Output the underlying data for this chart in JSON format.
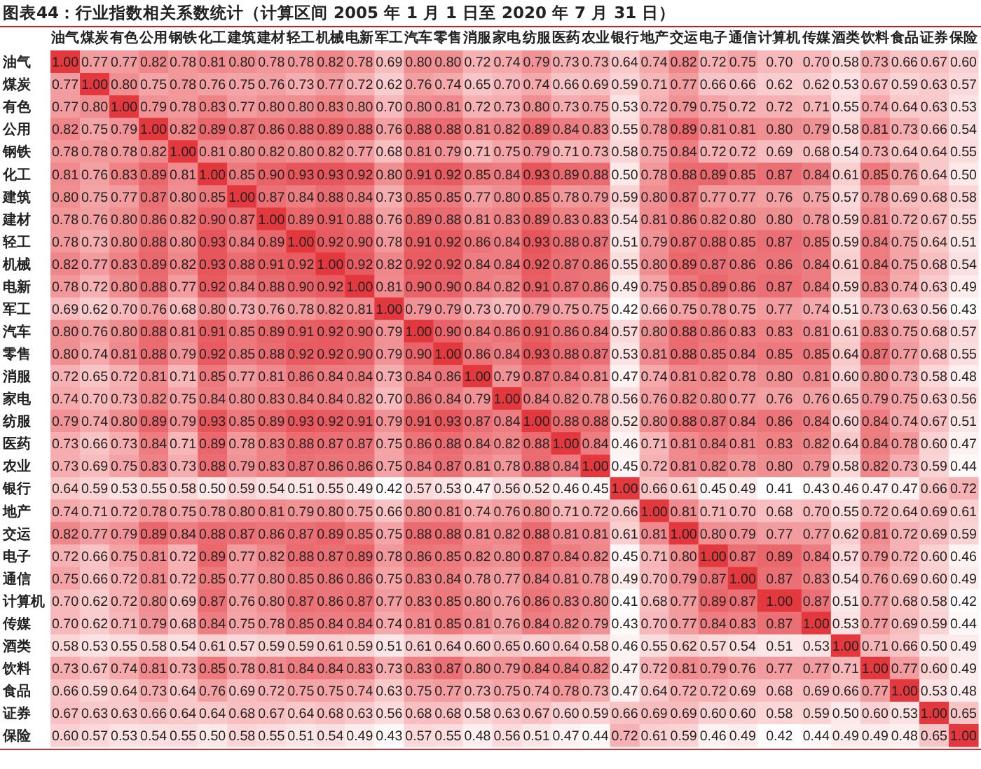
{
  "chart_data": {
    "type": "heatmap",
    "title": "图表44：行业指数相关系数统计（计算区间 2005 年 1 月 1 日至 2020 年 7 月 31 日）",
    "categories": [
      "油气",
      "煤炭",
      "有色",
      "公用",
      "钢铁",
      "化工",
      "建筑",
      "建材",
      "轻工",
      "机械",
      "电新",
      "军工",
      "汽车",
      "零售",
      "消服",
      "家电",
      "纺服",
      "医药",
      "农业",
      "银行",
      "地产",
      "交运",
      "电子",
      "通信",
      "计算机",
      "传媒",
      "酒类",
      "饮料",
      "食品",
      "证券",
      "保险"
    ],
    "y_categories": [
      "油气",
      "煤炭",
      "有色",
      "公用",
      "钢铁",
      "化工",
      "建筑",
      "建材",
      "轻工",
      "机械",
      "电新",
      "军工",
      "汽车",
      "零售",
      "消服",
      "家电",
      "纺服",
      "医药",
      "农业",
      "银行",
      "地产",
      "交运",
      "电子",
      "通信",
      "计算机",
      "传媒",
      "酒类",
      "饮料",
      "食品",
      "证券",
      "保险"
    ],
    "cells": [
      [
        1.0,
        0.77,
        0.77,
        0.82,
        0.78,
        0.81,
        0.8,
        0.78,
        0.78,
        0.82,
        0.78,
        0.69,
        0.8,
        0.8,
        0.72,
        0.74,
        0.79,
        0.73,
        0.73,
        0.64,
        0.74,
        0.82,
        0.72,
        0.75,
        0.7,
        0.7,
        0.58,
        0.73,
        0.66,
        0.67,
        0.6
      ],
      [
        0.77,
        1.0,
        0.8,
        0.75,
        0.78,
        0.76,
        0.75,
        0.76,
        0.73,
        0.77,
        0.72,
        0.62,
        0.76,
        0.74,
        0.65,
        0.7,
        0.74,
        0.66,
        0.69,
        0.59,
        0.71,
        0.77,
        0.66,
        0.66,
        0.62,
        0.62,
        0.53,
        0.67,
        0.59,
        0.63,
        0.57
      ],
      [
        0.77,
        0.8,
        1.0,
        0.79,
        0.78,
        0.83,
        0.77,
        0.8,
        0.8,
        0.83,
        0.8,
        0.7,
        0.8,
        0.81,
        0.72,
        0.73,
        0.8,
        0.73,
        0.75,
        0.53,
        0.72,
        0.79,
        0.75,
        0.72,
        0.72,
        0.71,
        0.55,
        0.74,
        0.64,
        0.63,
        0.53
      ],
      [
        0.82,
        0.75,
        0.79,
        1.0,
        0.82,
        0.89,
        0.87,
        0.86,
        0.88,
        0.89,
        0.88,
        0.76,
        0.88,
        0.88,
        0.81,
        0.82,
        0.89,
        0.84,
        0.83,
        0.55,
        0.78,
        0.89,
        0.81,
        0.81,
        0.8,
        0.79,
        0.58,
        0.81,
        0.73,
        0.66,
        0.54
      ],
      [
        0.78,
        0.78,
        0.78,
        0.82,
        1.0,
        0.81,
        0.8,
        0.82,
        0.8,
        0.82,
        0.77,
        0.68,
        0.81,
        0.79,
        0.71,
        0.75,
        0.79,
        0.71,
        0.73,
        0.58,
        0.75,
        0.84,
        0.72,
        0.72,
        0.69,
        0.68,
        0.54,
        0.73,
        0.64,
        0.64,
        0.55
      ],
      [
        0.81,
        0.76,
        0.83,
        0.89,
        0.81,
        1.0,
        0.85,
        0.9,
        0.93,
        0.93,
        0.92,
        0.8,
        0.91,
        0.92,
        0.85,
        0.84,
        0.93,
        0.89,
        0.88,
        0.5,
        0.78,
        0.88,
        0.89,
        0.85,
        0.87,
        0.84,
        0.61,
        0.85,
        0.76,
        0.64,
        0.5
      ],
      [
        0.8,
        0.75,
        0.77,
        0.87,
        0.8,
        0.85,
        1.0,
        0.87,
        0.84,
        0.88,
        0.84,
        0.73,
        0.85,
        0.85,
        0.77,
        0.8,
        0.85,
        0.78,
        0.79,
        0.59,
        0.8,
        0.87,
        0.77,
        0.77,
        0.76,
        0.75,
        0.57,
        0.78,
        0.69,
        0.68,
        0.58
      ],
      [
        0.78,
        0.76,
        0.8,
        0.86,
        0.82,
        0.9,
        0.87,
        1.0,
        0.89,
        0.91,
        0.88,
        0.76,
        0.89,
        0.88,
        0.81,
        0.83,
        0.89,
        0.83,
        0.83,
        0.54,
        0.81,
        0.86,
        0.82,
        0.8,
        0.8,
        0.78,
        0.59,
        0.81,
        0.72,
        0.67,
        0.55
      ],
      [
        0.78,
        0.73,
        0.8,
        0.88,
        0.8,
        0.93,
        0.84,
        0.89,
        1.0,
        0.92,
        0.9,
        0.78,
        0.91,
        0.92,
        0.86,
        0.84,
        0.93,
        0.88,
        0.87,
        0.51,
        0.79,
        0.87,
        0.88,
        0.85,
        0.87,
        0.85,
        0.59,
        0.84,
        0.75,
        0.64,
        0.51
      ],
      [
        0.82,
        0.77,
        0.83,
        0.89,
        0.82,
        0.93,
        0.88,
        0.91,
        0.92,
        1.0,
        0.92,
        0.82,
        0.92,
        0.92,
        0.84,
        0.84,
        0.92,
        0.87,
        0.86,
        0.55,
        0.8,
        0.89,
        0.87,
        0.86,
        0.86,
        0.84,
        0.61,
        0.84,
        0.75,
        0.68,
        0.54
      ],
      [
        0.78,
        0.72,
        0.8,
        0.88,
        0.77,
        0.92,
        0.84,
        0.88,
        0.9,
        0.92,
        1.0,
        0.81,
        0.9,
        0.9,
        0.84,
        0.82,
        0.91,
        0.87,
        0.86,
        0.49,
        0.75,
        0.85,
        0.89,
        0.86,
        0.87,
        0.84,
        0.59,
        0.83,
        0.74,
        0.63,
        0.49
      ],
      [
        0.69,
        0.62,
        0.7,
        0.76,
        0.68,
        0.8,
        0.73,
        0.76,
        0.78,
        0.82,
        0.81,
        1.0,
        0.79,
        0.79,
        0.73,
        0.7,
        0.79,
        0.75,
        0.75,
        0.42,
        0.66,
        0.75,
        0.78,
        0.75,
        0.77,
        0.74,
        0.51,
        0.73,
        0.63,
        0.56,
        0.43
      ],
      [
        0.8,
        0.76,
        0.8,
        0.88,
        0.81,
        0.91,
        0.85,
        0.89,
        0.91,
        0.92,
        0.9,
        0.79,
        1.0,
        0.9,
        0.84,
        0.86,
        0.91,
        0.86,
        0.84,
        0.57,
        0.8,
        0.88,
        0.86,
        0.83,
        0.83,
        0.81,
        0.61,
        0.83,
        0.75,
        0.68,
        0.57
      ],
      [
        0.8,
        0.74,
        0.81,
        0.88,
        0.79,
        0.92,
        0.85,
        0.88,
        0.92,
        0.92,
        0.9,
        0.79,
        0.9,
        1.0,
        0.86,
        0.84,
        0.93,
        0.88,
        0.87,
        0.53,
        0.81,
        0.88,
        0.85,
        0.84,
        0.85,
        0.85,
        0.64,
        0.87,
        0.77,
        0.68,
        0.55
      ],
      [
        0.72,
        0.65,
        0.72,
        0.81,
        0.71,
        0.85,
        0.77,
        0.81,
        0.86,
        0.84,
        0.84,
        0.73,
        0.84,
        0.86,
        1.0,
        0.79,
        0.87,
        0.84,
        0.81,
        0.47,
        0.74,
        0.81,
        0.82,
        0.78,
        0.8,
        0.81,
        0.6,
        0.8,
        0.73,
        0.58,
        0.48
      ],
      [
        0.74,
        0.7,
        0.73,
        0.82,
        0.75,
        0.84,
        0.8,
        0.83,
        0.84,
        0.84,
        0.82,
        0.7,
        0.86,
        0.84,
        0.79,
        1.0,
        0.84,
        0.82,
        0.78,
        0.56,
        0.76,
        0.82,
        0.8,
        0.77,
        0.76,
        0.76,
        0.65,
        0.79,
        0.75,
        0.63,
        0.56
      ],
      [
        0.79,
        0.74,
        0.8,
        0.89,
        0.79,
        0.93,
        0.85,
        0.89,
        0.93,
        0.92,
        0.91,
        0.79,
        0.91,
        0.93,
        0.87,
        0.84,
        1.0,
        0.88,
        0.88,
        0.52,
        0.8,
        0.88,
        0.87,
        0.84,
        0.86,
        0.84,
        0.6,
        0.84,
        0.74,
        0.67,
        0.51
      ],
      [
        0.73,
        0.66,
        0.73,
        0.84,
        0.71,
        0.89,
        0.78,
        0.83,
        0.88,
        0.87,
        0.87,
        0.75,
        0.86,
        0.88,
        0.84,
        0.82,
        0.88,
        1.0,
        0.84,
        0.46,
        0.71,
        0.81,
        0.84,
        0.81,
        0.83,
        0.82,
        0.64,
        0.84,
        0.78,
        0.6,
        0.47
      ],
      [
        0.73,
        0.69,
        0.75,
        0.83,
        0.73,
        0.88,
        0.79,
        0.83,
        0.87,
        0.86,
        0.86,
        0.75,
        0.84,
        0.87,
        0.81,
        0.78,
        0.88,
        0.84,
        1.0,
        0.45,
        0.72,
        0.81,
        0.82,
        0.78,
        0.8,
        0.79,
        0.58,
        0.82,
        0.73,
        0.59,
        0.44
      ],
      [
        0.64,
        0.59,
        0.53,
        0.55,
        0.58,
        0.5,
        0.59,
        0.54,
        0.51,
        0.55,
        0.49,
        0.42,
        0.57,
        0.53,
        0.47,
        0.56,
        0.52,
        0.46,
        0.45,
        1.0,
        0.66,
        0.61,
        0.45,
        0.49,
        0.41,
        0.43,
        0.46,
        0.47,
        0.47,
        0.66,
        0.72
      ],
      [
        0.74,
        0.71,
        0.72,
        0.78,
        0.75,
        0.78,
        0.8,
        0.81,
        0.79,
        0.8,
        0.75,
        0.66,
        0.8,
        0.81,
        0.74,
        0.76,
        0.8,
        0.71,
        0.72,
        0.66,
        1.0,
        0.81,
        0.71,
        0.7,
        0.68,
        0.7,
        0.55,
        0.72,
        0.64,
        0.69,
        0.61
      ],
      [
        0.82,
        0.77,
        0.79,
        0.89,
        0.84,
        0.88,
        0.87,
        0.86,
        0.87,
        0.89,
        0.85,
        0.75,
        0.88,
        0.88,
        0.81,
        0.82,
        0.88,
        0.81,
        0.81,
        0.61,
        0.81,
        1.0,
        0.8,
        0.79,
        0.77,
        0.77,
        0.62,
        0.81,
        0.72,
        0.69,
        0.59
      ],
      [
        0.72,
        0.66,
        0.75,
        0.81,
        0.72,
        0.89,
        0.77,
        0.82,
        0.88,
        0.87,
        0.89,
        0.78,
        0.86,
        0.85,
        0.82,
        0.8,
        0.87,
        0.84,
        0.82,
        0.45,
        0.71,
        0.8,
        1.0,
        0.87,
        0.89,
        0.84,
        0.57,
        0.79,
        0.72,
        0.6,
        0.46
      ],
      [
        0.75,
        0.66,
        0.72,
        0.81,
        0.72,
        0.85,
        0.77,
        0.8,
        0.85,
        0.86,
        0.86,
        0.75,
        0.83,
        0.84,
        0.78,
        0.77,
        0.84,
        0.81,
        0.78,
        0.49,
        0.7,
        0.79,
        0.87,
        1.0,
        0.87,
        0.83,
        0.54,
        0.76,
        0.69,
        0.6,
        0.49
      ],
      [
        0.7,
        0.62,
        0.72,
        0.8,
        0.69,
        0.87,
        0.76,
        0.8,
        0.87,
        0.86,
        0.87,
        0.77,
        0.83,
        0.85,
        0.8,
        0.76,
        0.86,
        0.83,
        0.8,
        0.41,
        0.68,
        0.77,
        0.89,
        0.87,
        1.0,
        0.87,
        0.51,
        0.77,
        0.68,
        0.58,
        0.42
      ],
      [
        0.7,
        0.62,
        0.71,
        0.79,
        0.68,
        0.84,
        0.75,
        0.78,
        0.85,
        0.84,
        0.84,
        0.74,
        0.81,
        0.85,
        0.81,
        0.76,
        0.84,
        0.82,
        0.79,
        0.43,
        0.7,
        0.77,
        0.84,
        0.83,
        0.87,
        1.0,
        0.53,
        0.77,
        0.69,
        0.59,
        0.44
      ],
      [
        0.58,
        0.53,
        0.55,
        0.58,
        0.54,
        0.61,
        0.57,
        0.59,
        0.59,
        0.61,
        0.59,
        0.51,
        0.61,
        0.64,
        0.6,
        0.65,
        0.6,
        0.64,
        0.58,
        0.46,
        0.55,
        0.62,
        0.57,
        0.54,
        0.51,
        0.53,
        1.0,
        0.71,
        0.66,
        0.5,
        0.49
      ],
      [
        0.73,
        0.67,
        0.74,
        0.81,
        0.73,
        0.85,
        0.78,
        0.81,
        0.84,
        0.84,
        0.83,
        0.73,
        0.83,
        0.87,
        0.8,
        0.79,
        0.84,
        0.84,
        0.82,
        0.47,
        0.72,
        0.81,
        0.79,
        0.76,
        0.77,
        0.77,
        0.71,
        1.0,
        0.77,
        0.6,
        0.49
      ],
      [
        0.66,
        0.59,
        0.64,
        0.73,
        0.64,
        0.76,
        0.69,
        0.72,
        0.75,
        0.75,
        0.74,
        0.63,
        0.75,
        0.77,
        0.73,
        0.75,
        0.74,
        0.78,
        0.73,
        0.47,
        0.64,
        0.72,
        0.72,
        0.69,
        0.68,
        0.69,
        0.66,
        0.77,
        1.0,
        0.53,
        0.48
      ],
      [
        0.67,
        0.63,
        0.63,
        0.66,
        0.64,
        0.64,
        0.68,
        0.67,
        0.64,
        0.68,
        0.63,
        0.56,
        0.68,
        0.68,
        0.58,
        0.63,
        0.67,
        0.6,
        0.59,
        0.66,
        0.69,
        0.69,
        0.6,
        0.6,
        0.58,
        0.59,
        0.5,
        0.6,
        0.53,
        1.0,
        0.65
      ],
      [
        0.6,
        0.57,
        0.53,
        0.54,
        0.55,
        0.5,
        0.58,
        0.55,
        0.51,
        0.54,
        0.49,
        0.43,
        0.57,
        0.55,
        0.48,
        0.56,
        0.51,
        0.47,
        0.44,
        0.72,
        0.61,
        0.59,
        0.46,
        0.49,
        0.42,
        0.44,
        0.49,
        0.49,
        0.48,
        0.65,
        1.0
      ]
    ],
    "cell_labels": [
      [
        "1.00",
        "0.77",
        "0.77",
        "0.82",
        "0.78",
        "0.81",
        "0.80",
        "0.78",
        "0.78",
        "0.82",
        "0.78",
        "0.69",
        "0.80",
        "0.80",
        "0.72",
        "0.74",
        "0.79",
        "0.73",
        "0.73",
        "0.64",
        "0.74",
        "0.82",
        "0.72",
        "0.75",
        "0.70",
        "0.70",
        "0.58",
        "0.73",
        "0.66",
        "0.67",
        "0.60"
      ],
      [
        "0.77",
        "1.00",
        "0.80",
        "0.75",
        "0.78",
        "0.76",
        "0.75",
        "0.76",
        "0.73",
        "0.77",
        "0.72",
        "0.62",
        "0.76",
        "0.74",
        "0.65",
        "0.70",
        "0.74",
        "0.66",
        "0.69",
        "0.59",
        "0.71",
        "0.77",
        "0.66",
        "0.66",
        "0.62",
        "0.62",
        "0.53",
        "0.67",
        "0.59",
        "0.63",
        "0.57"
      ],
      [
        "0.77",
        "0.80",
        "1.00",
        "0.79",
        "0.78",
        "0.83",
        "0.77",
        "0.80",
        "0.80",
        "0.83",
        "0.80",
        "0.70",
        "0.80",
        "0.81",
        "0.72",
        "0.73",
        "0.80",
        "0.73",
        "0.75",
        "0.53",
        "0.72",
        "0.79",
        "0.75",
        "0.72",
        "0.72",
        "0.71",
        "0.55",
        "0.74",
        "0.64",
        "0.63",
        "0.53"
      ],
      [
        "0.82",
        "0.75",
        "0.79",
        "1.00",
        "0.82",
        "0.89",
        "0.87",
        "0.86",
        "0.88",
        "0.89",
        "0.88",
        "0.76",
        "0.88",
        "0.88",
        "0.81",
        "0.82",
        "0.89",
        "0.84",
        "0.83",
        "0.55",
        "0.78",
        "0.89",
        "0.81",
        "0.81",
        "0.80",
        "0.79",
        "0.58",
        "0.81",
        "0.73",
        "0.66",
        "0.54"
      ],
      [
        "0.78",
        "0.78",
        "0.78",
        "0.82",
        "1.00",
        "0.81",
        "0.80",
        "0.82",
        "0.80",
        "0.82",
        "0.77",
        "0.68",
        "0.81",
        "0.79",
        "0.71",
        "0.75",
        "0.79",
        "0.71",
        "0.73",
        "0.58",
        "0.75",
        "0.84",
        "0.72",
        "0.72",
        "0.69",
        "0.68",
        "0.54",
        "0.73",
        "0.64",
        "0.64",
        "0.55"
      ],
      [
        "0.81",
        "0.76",
        "0.83",
        "0.89",
        "0.81",
        "1.00",
        "0.85",
        "0.90",
        "0.93",
        "0.93",
        "0.92",
        "0.80",
        "0.91",
        "0.92",
        "0.85",
        "0.84",
        "0.93",
        "0.89",
        "0.88",
        "0.50",
        "0.78",
        "0.88",
        "0.89",
        "0.85",
        "0.87",
        "0.84",
        "0.61",
        "0.85",
        "0.76",
        "0.64",
        "0.50"
      ],
      [
        "0.80",
        "0.75",
        "0.77",
        "0.87",
        "0.80",
        "0.85",
        "1.00",
        "0.87",
        "0.84",
        "0.88",
        "0.84",
        "0.73",
        "0.85",
        "0.85",
        "0.77",
        "0.80",
        "0.85",
        "0.78",
        "0.79",
        "0.59",
        "0.80",
        "0.87",
        "0.77",
        "0.77",
        "0.76",
        "0.75",
        "0.57",
        "0.78",
        "0.69",
        "0.68",
        "0.58"
      ],
      [
        "0.78",
        "0.76",
        "0.80",
        "0.86",
        "0.82",
        "0.90",
        "0.87",
        "1.00",
        "0.89",
        "0.91",
        "0.88",
        "0.76",
        "0.89",
        "0.88",
        "0.81",
        "0.83",
        "0.89",
        "0.83",
        "0.83",
        "0.54",
        "0.81",
        "0.86",
        "0.82",
        "0.80",
        "0.80",
        "0.78",
        "0.59",
        "0.81",
        "0.72",
        "0.67",
        "0.55"
      ],
      [
        "0.78",
        "0.73",
        "0.80",
        "0.88",
        "0.80",
        "0.93",
        "0.84",
        "0.89",
        "1.00",
        "0.92",
        "0.90",
        "0.78",
        "0.91",
        "0.92",
        "0.86",
        "0.84",
        "0.93",
        "0.88",
        "0.87",
        "0.51",
        "0.79",
        "0.87",
        "0.88",
        "0.85",
        "0.87",
        "0.85",
        "0.59",
        "0.84",
        "0.75",
        "0.64",
        "0.51"
      ],
      [
        "0.82",
        "0.77",
        "0.83",
        "0.89",
        "0.82",
        "0.93",
        "0.88",
        "0.91",
        "0.92",
        "1.00",
        "0.92",
        "0.82",
        "0.92",
        "0.92",
        "0.84",
        "0.84",
        "0.92",
        "0.87",
        "0.86",
        "0.55",
        "0.80",
        "0.89",
        "0.87",
        "0.86",
        "0.86",
        "0.84",
        "0.61",
        "0.84",
        "0.75",
        "0.68",
        "0.54"
      ],
      [
        "0.78",
        "0.72",
        "0.80",
        "0.88",
        "0.77",
        "0.92",
        "0.84",
        "0.88",
        "0.90",
        "0.92",
        "1.00",
        "0.81",
        "0.90",
        "0.90",
        "0.84",
        "0.82",
        "0.91",
        "0.87",
        "0.86",
        "0.49",
        "0.75",
        "0.85",
        "0.89",
        "0.86",
        "0.87",
        "0.84",
        "0.59",
        "0.83",
        "0.74",
        "0.63",
        "0.49"
      ],
      [
        "0.69",
        "0.62",
        "0.70",
        "0.76",
        "0.68",
        "0.80",
        "0.73",
        "0.76",
        "0.78",
        "0.82",
        "0.81",
        "1.00",
        "0.79",
        "0.79",
        "0.73",
        "0.70",
        "0.79",
        "0.75",
        "0.75",
        "0.42",
        "0.66",
        "0.75",
        "0.78",
        "0.75",
        "0.77",
        "0.74",
        "0.51",
        "0.73",
        "0.63",
        "0.56",
        "0.43"
      ],
      [
        "0.80",
        "0.76",
        "0.80",
        "0.88",
        "0.81",
        "0.91",
        "0.85",
        "0.89",
        "0.91",
        "0.92",
        "0.90",
        "0.79",
        "1.00",
        "0.90",
        "0.84",
        "0.86",
        "0.91",
        "0.86",
        "0.84",
        "0.57",
        "0.80",
        "0.88",
        "0.86",
        "0.83",
        "0.83",
        "0.81",
        "0.61",
        "0.83",
        "0.75",
        "0.68",
        "0.57"
      ],
      [
        "0.80",
        "0.74",
        "0.81",
        "0.88",
        "0.79",
        "0.92",
        "0.85",
        "0.88",
        "0.92",
        "0.92",
        "0.90",
        "0.79",
        "0.90",
        "1.00",
        "0.86",
        "0.84",
        "0.93",
        "0.88",
        "0.87",
        "0.53",
        "0.81",
        "0.88",
        "0.85",
        "0.84",
        "0.85",
        "0.85",
        "0.64",
        "0.87",
        "0.77",
        "0.68",
        "0.55"
      ],
      [
        "0.72",
        "0.65",
        "0.72",
        "0.81",
        "0.71",
        "0.85",
        "0.77",
        "0.81",
        "0.86",
        "0.84",
        "0.84",
        "0.73",
        "0.84",
        "0.86",
        "1.00",
        "0.79",
        "0.87",
        "0.84",
        "0.81",
        "0.47",
        "0.74",
        "0.81",
        "0.82",
        "0.78",
        "0.80",
        "0.81",
        "0.60",
        "0.80",
        "0.73",
        "0.58",
        "0.48"
      ],
      [
        "0.74",
        "0.70",
        "0.73",
        "0.82",
        "0.75",
        "0.84",
        "0.80",
        "0.83",
        "0.84",
        "0.84",
        "0.82",
        "0.70",
        "0.86",
        "0.84",
        "0.79",
        "1.00",
        "0.84",
        "0.82",
        "0.78",
        "0.56",
        "0.76",
        "0.82",
        "0.80",
        "0.77",
        "0.76",
        "0.76",
        "0.65",
        "0.79",
        "0.75",
        "0.63",
        "0.56"
      ],
      [
        "0.79",
        "0.74",
        "0.80",
        "0.89",
        "0.79",
        "0.93",
        "0.85",
        "0.89",
        "0.93",
        "0.92",
        "0.91",
        "0.79",
        "0.91",
        "0.93",
        "0.87",
        "0.84",
        "1.00",
        "0.88",
        "0.88",
        "0.52",
        "0.80",
        "0.88",
        "0.87",
        "0.84",
        "0.86",
        "0.84",
        "0.60",
        "0.84",
        "0.74",
        "0.67",
        "0.51"
      ],
      [
        "0.73",
        "0.66",
        "0.73",
        "0.84",
        "0.71",
        "0.89",
        "0.78",
        "0.83",
        "0.88",
        "0.87",
        "0.87",
        "0.75",
        "0.86",
        "0.88",
        "0.84",
        "0.82",
        "0.88",
        "1.00",
        "0.84",
        "0.46",
        "0.71",
        "0.81",
        "0.84",
        "0.81",
        "0.83",
        "0.82",
        "0.64",
        "0.84",
        "0.78",
        "0.60",
        "0.47"
      ],
      [
        "0.73",
        "0.69",
        "0.75",
        "0.83",
        "0.73",
        "0.88",
        "0.79",
        "0.83",
        "0.87",
        "0.86",
        "0.86",
        "0.75",
        "0.84",
        "0.87",
        "0.81",
        "0.78",
        "0.88",
        "0.84",
        "1.00",
        "0.45",
        "0.72",
        "0.81",
        "0.82",
        "0.78",
        "0.80",
        "0.79",
        "0.58",
        "0.82",
        "0.73",
        "0.59",
        "0.44"
      ],
      [
        "0.64",
        "0.59",
        "0.53",
        "0.55",
        "0.58",
        "0.50",
        "0.59",
        "0.54",
        "0.51",
        "0.55",
        "0.49",
        "0.42",
        "0.57",
        "0.53",
        "0.47",
        "0.56",
        "0.52",
        "0.46",
        "0.45",
        "1.00",
        "0.66",
        "0.61",
        "0.45",
        "0.49",
        "0.41",
        "0.43",
        "0.46",
        "0.47",
        "0.47",
        "0.66",
        "0.72"
      ],
      [
        "0.74",
        "0.71",
        "0.72",
        "0.78",
        "0.75",
        "0.78",
        "0.80",
        "0.81",
        "0.79",
        "0.80",
        "0.75",
        "0.66",
        "0.80",
        "0.81",
        "0.74",
        "0.76",
        "0.80",
        "0.71",
        "0.72",
        "0.66",
        "1.00",
        "0.81",
        "0.71",
        "0.70",
        "0.68",
        "0.70",
        "0.55",
        "0.72",
        "0.64",
        "0.69",
        "0.61"
      ],
      [
        "0.82",
        "0.77",
        "0.79",
        "0.89",
        "0.84",
        "0.88",
        "0.87",
        "0.86",
        "0.87",
        "0.89",
        "0.85",
        "0.75",
        "0.88",
        "0.88",
        "0.81",
        "0.82",
        "0.88",
        "0.81",
        "0.81",
        "0.61",
        "0.81",
        "1.00",
        "0.80",
        "0.79",
        "0.77",
        "0.77",
        "0.62",
        "0.81",
        "0.72",
        "0.69",
        "0.59"
      ],
      [
        "0.72",
        "0.66",
        "0.75",
        "0.81",
        "0.72",
        "0.89",
        "0.77",
        "0.82",
        "0.88",
        "0.87",
        "0.89",
        "0.78",
        "0.86",
        "0.85",
        "0.82",
        "0.80",
        "0.87",
        "0.84",
        "0.82",
        "0.45",
        "0.71",
        "0.80",
        "1.00",
        "0.87",
        "0.89",
        "0.84",
        "0.57",
        "0.79",
        "0.72",
        "0.60",
        "0.46"
      ],
      [
        "0.75",
        "0.66",
        "0.72",
        "0.81",
        "0.72",
        "0.85",
        "0.77",
        "0.80",
        "0.85",
        "0.86",
        "0.86",
        "0.75",
        "0.83",
        "0.84",
        "0.78",
        "0.77",
        "0.84",
        "0.81",
        "0.78",
        "0.49",
        "0.70",
        "0.79",
        "0.87",
        "1.00",
        "0.87",
        "0.83",
        "0.54",
        "0.76",
        "0.69",
        "0.60",
        "0.49"
      ],
      [
        "0.70",
        "0.62",
        "0.72",
        "0.80",
        "0.69",
        "0.87",
        "0.76",
        "0.80",
        "0.87",
        "0.86",
        "0.87",
        "0.77",
        "0.83",
        "0.85",
        "0.80",
        "0.76",
        "0.86",
        "0.83",
        "0.80",
        "0.41",
        "0.68",
        "0.77",
        "0.89",
        "0.87",
        "1.00",
        "0.87",
        "0.51",
        "0.77",
        "0.68",
        "0.58",
        "0.42"
      ],
      [
        "0.70",
        "0.62",
        "0.71",
        "0.79",
        "0.68",
        "0.84",
        "0.75",
        "0.78",
        "0.85",
        "0.84",
        "0.84",
        "0.74",
        "0.81",
        "0.85",
        "0.81",
        "0.76",
        "0.84",
        "0.82",
        "0.79",
        "0.43",
        "0.70",
        "0.77",
        "0.84",
        "0.83",
        "0.87",
        "1.00",
        "0.53",
        "0.77",
        "0.69",
        "0.59",
        "0.44"
      ],
      [
        "0.58",
        "0.53",
        "0.55",
        "0.58",
        "0.54",
        "0.61",
        "0.57",
        "0.59",
        "0.59",
        "0.61",
        "0.59",
        "0.51",
        "0.61",
        "0.64",
        "0.60",
        "0.65",
        "0.60",
        "0.64",
        "0.58",
        "0.46",
        "0.55",
        "0.62",
        "0.57",
        "0.54",
        "0.51",
        "0.53",
        "1.00",
        "0.71",
        "0.66",
        "0.50",
        "0.49"
      ],
      [
        "0.73",
        "0.67",
        "0.74",
        "0.81",
        "0.73",
        "0.85",
        "0.78",
        "0.81",
        "0.84",
        "0.84",
        "0.83",
        "0.73",
        "0.83",
        "0.87",
        "0.80",
        "0.79",
        "0.84",
        "0.84",
        "0.82",
        "0.47",
        "0.72",
        "0.81",
        "0.79",
        "0.76",
        "0.77",
        "0.77",
        "0.71",
        "1.00",
        "0.77",
        "0.60",
        "0.49"
      ],
      [
        "0.66",
        "0.59",
        "0.64",
        "0.73",
        "0.64",
        "0.76",
        "0.69",
        "0.72",
        "0.75",
        "0.75",
        "0.74",
        "0.63",
        "0.75",
        "0.77",
        "0.73",
        "0.75",
        "0.74",
        "0.78",
        "0.73",
        "0.47",
        "0.64",
        "0.72",
        "0.72",
        "0.69",
        "0.68",
        "0.69",
        "0.66",
        "0.77",
        "1.00",
        "0.53",
        "0.48"
      ],
      [
        "0.67",
        "0.63",
        "0.63",
        "0.66",
        "0.64",
        "0.64",
        "0.68",
        "0.67",
        "0.64",
        "0.68",
        "0.63",
        "0.56",
        "0.68",
        "0.68",
        "0.58",
        "0.63",
        "0.67",
        "0.60",
        "0.59",
        "0.66",
        "0.69",
        "0.69",
        "0.60",
        "0.60",
        "0.58",
        "0.59",
        "0.50",
        "0.60",
        "0.53",
        "1.00",
        "0.65"
      ],
      [
        "0.60",
        "0.57",
        "0.53",
        "0.54",
        "0.55",
        "0.50",
        "0.58",
        "0.55",
        "0.51",
        "0.54",
        "0.49",
        "0.43",
        "0.57",
        "0.55",
        "0.48",
        "0.56",
        "0.51",
        "0.47",
        "0.44",
        "0.72",
        "0.61",
        "0.59",
        "0.46",
        "0.49",
        "0.42",
        "0.44",
        "0.49",
        "0.49",
        "0.48",
        "0.65",
        "1.00"
      ]
    ]
  }
}
